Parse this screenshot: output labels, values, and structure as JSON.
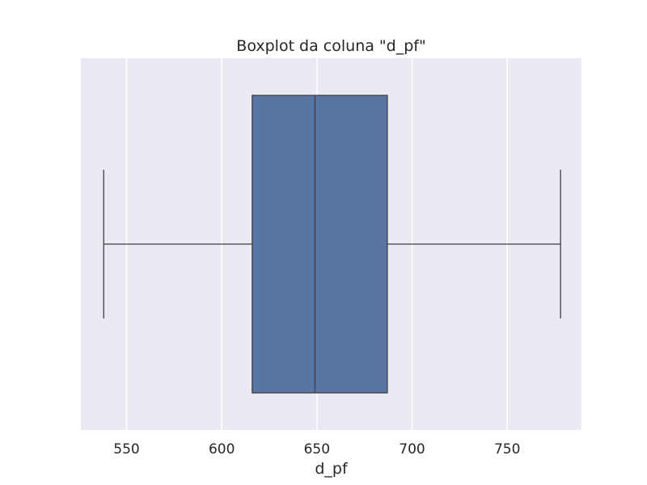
{
  "chart_data": {
    "type": "boxplot",
    "title": "Boxplot da coluna \"d_pf\"",
    "xlabel": "d_pf",
    "ylabel": "",
    "orientation": "horizontal",
    "xlim": [
      526,
      789
    ],
    "x_ticks": [
      550,
      600,
      650,
      700,
      750
    ],
    "x_tick_labels": [
      "550",
      "600",
      "650",
      "700",
      "750"
    ],
    "grid": true,
    "stats": {
      "whisker_low": 538,
      "q1": 616,
      "median": 649,
      "q3": 687,
      "whisker_high": 778
    },
    "colors": {
      "plot_background": "#eaeaf2",
      "grid": "#ffffff",
      "box_fill": "#5875a4",
      "line": "#3f3f3f",
      "text": "#262626"
    }
  }
}
